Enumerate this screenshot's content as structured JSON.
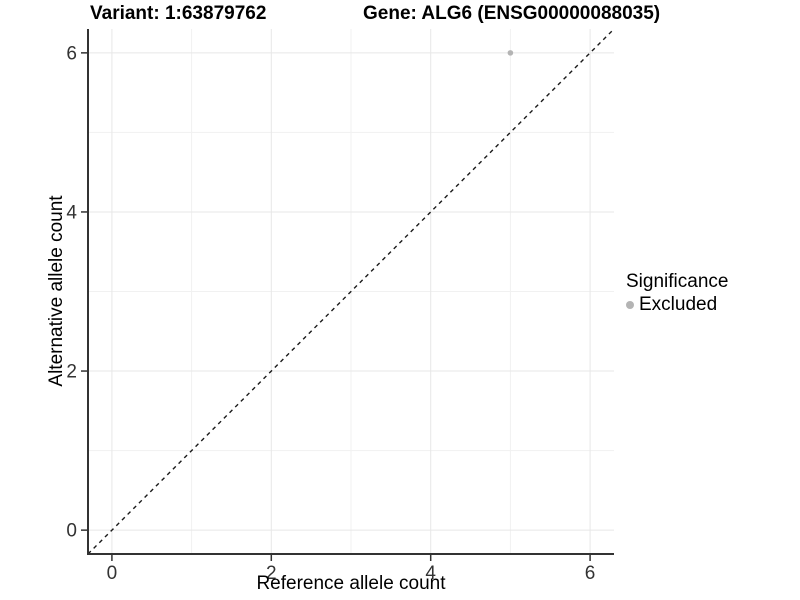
{
  "titles": {
    "variant": "Variant: 1:63879762",
    "gene": "Gene: ALG6 (ENSG00000088035)"
  },
  "legend": {
    "title": "Significance",
    "items": [
      {
        "label": "Excluded",
        "color": "#b4b4b4"
      }
    ]
  },
  "chart_data": {
    "type": "scatter",
    "title_left": "Variant: 1:63879762",
    "title_right": "Gene: ALG6 (ENSG00000088035)",
    "xlabel": "Reference allele count",
    "ylabel": "Alternative allele count",
    "xlim": [
      -0.3,
      6.3
    ],
    "ylim": [
      -0.3,
      6.3
    ],
    "xticks": [
      0,
      2,
      4,
      6
    ],
    "yticks": [
      0,
      2,
      4,
      6
    ],
    "xticklabels": [
      "0",
      "2",
      "4",
      "6"
    ],
    "yticklabels": [
      "0",
      "2",
      "4",
      "6"
    ],
    "minor_xticks": [
      1,
      3,
      5
    ],
    "minor_yticks": [
      1,
      3,
      5
    ],
    "grid": true,
    "legend_position": "right",
    "reference_line": {
      "style": "dashed",
      "from": [
        -0.3,
        -0.3
      ],
      "to": [
        6.3,
        6.3
      ],
      "color": "#1a1a1a"
    },
    "series": [
      {
        "name": "Excluded",
        "color": "#b4b4b4",
        "points": [
          {
            "x": 5,
            "y": 6
          }
        ]
      }
    ],
    "colors": {
      "axis_line": "#333333",
      "tick_mark": "#333333",
      "tick_label": "#333333",
      "grid_major": "#e7e7e7",
      "grid_minor": "#f1f1f1",
      "background": "#ffffff"
    }
  }
}
